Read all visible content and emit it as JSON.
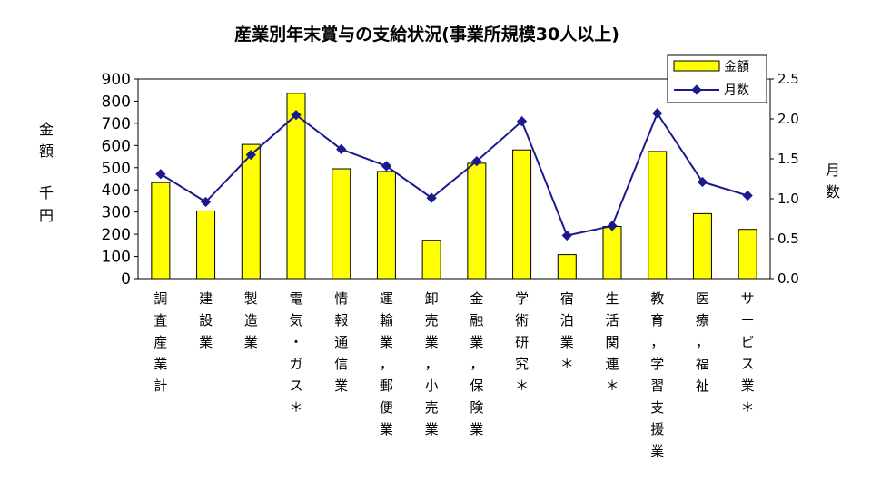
{
  "chart_data": {
    "type": "bar",
    "title": "産業別年末賞与の支給状況(事業所規模30人以上)",
    "ylabel_left": "金額 千円",
    "ylabel_left_line1": "金",
    "ylabel_left_line2": "額",
    "ylabel_left_line3": "千",
    "ylabel_left_line4": "円",
    "ylabel_right": "月数",
    "ylabel_right_line1": "月",
    "ylabel_right_line2": "数",
    "ylim_left": [
      0,
      900
    ],
    "ylim_right": [
      0,
      2.5
    ],
    "yticks_left": [
      "0",
      "100",
      "200",
      "300",
      "400",
      "500",
      "600",
      "700",
      "800",
      "900"
    ],
    "yticks_right": [
      "0.0",
      "0.5",
      "1.0",
      "1.5",
      "2.0",
      "2.5"
    ],
    "legend_position": "top-right",
    "categories": [
      "調査産業計",
      "建設業",
      "製造業",
      "電気・ガス＊",
      "情報通信業",
      "運輸業，郵便業",
      "卸売業，小売業",
      "金融業，保険業",
      "学術研究＊",
      "宿泊業＊",
      "生活関連＊",
      "教育，学習支援業",
      "医療，福祉",
      "サービス業＊"
    ],
    "series": [
      {
        "name": "金額",
        "kind": "bar",
        "axis": "left",
        "color": "#ffff00",
        "values": [
          433,
          305,
          605,
          835,
          495,
          483,
          173,
          520,
          580,
          108,
          235,
          573,
          293,
          222
        ]
      },
      {
        "name": "月数",
        "kind": "line",
        "axis": "right",
        "color": "#1a1a8c",
        "values": [
          1.31,
          0.96,
          1.55,
          2.05,
          1.62,
          1.41,
          1.01,
          1.47,
          1.97,
          0.54,
          0.66,
          2.07,
          1.21,
          1.04
        ]
      }
    ]
  }
}
